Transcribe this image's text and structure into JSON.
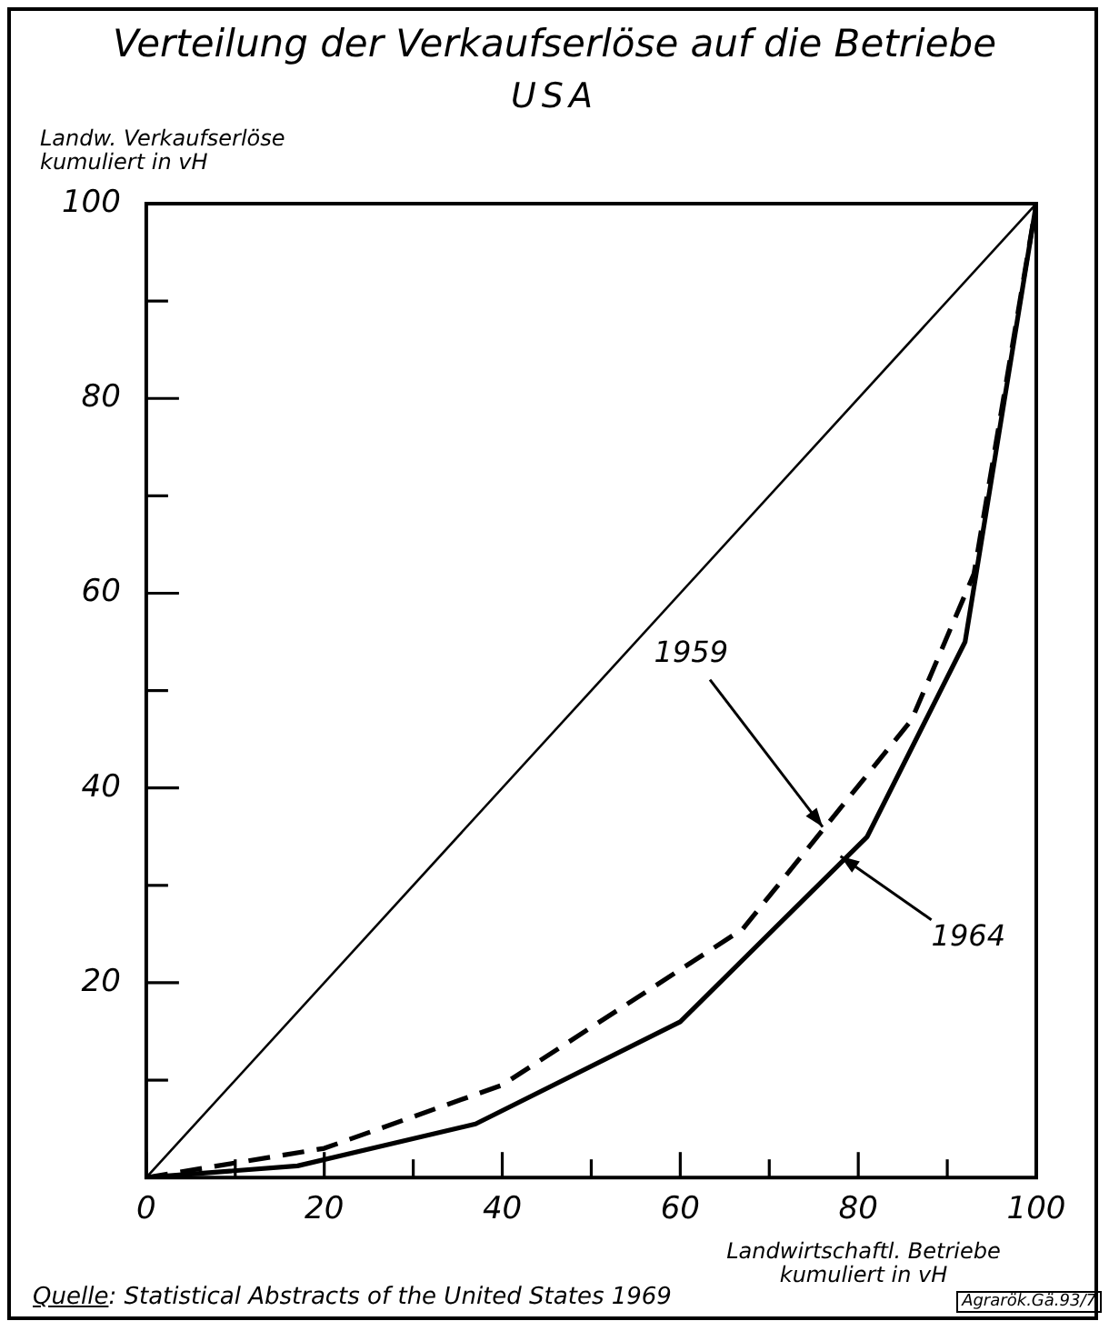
{
  "chart_data": {
    "type": "line",
    "title": "Verteilung der Verkaufserlöse auf die Betriebe",
    "subtitle": "USA",
    "ylabel": "Landw. Verkaufserlöse kumuliert in vH",
    "xlabel": "Landwirtschaftl. Betriebe kumuliert in vH",
    "x": [
      0,
      100
    ],
    "series": [
      {
        "color": "#000000",
        "values": [
          0,
          100
        ],
        "line_style": "solid"
      },
      {
        "color": "#000000",
        "x": [
          0,
          20,
          40,
          67,
          86,
          93,
          100
        ],
        "values": [
          0,
          3,
          9.5,
          25.5,
          47,
          62,
          100
        ],
        "line_style": "dashed"
      },
      {
        "color": "#000000",
        "x": [
          0,
          17,
          37,
          60,
          81,
          92,
          100
        ],
        "values": [
          0,
          1.2,
          5.5,
          16,
          35,
          55,
          100
        ],
        "line_style": "solid"
      }
    ],
    "xlim": [
      0,
      100
    ],
    "ylim": [
      0,
      100
    ],
    "xticks": [
      0,
      {
        "value": 10,
        "label": null
      },
      20,
      {
        "value": 30,
        "label": null
      },
      40,
      {
        "value": 50,
        "label": null
      },
      60,
      {
        "value": 70,
        "label": null
      },
      80,
      {
        "value": 90,
        "label": null
      },
      100
    ],
    "yticks": [
      {
        "value": 0,
        "label": null
      },
      {
        "value": 10,
        "label": null
      },
      20,
      {
        "value": 30,
        "label": null
      },
      40,
      {
        "value": 50,
        "label": null
      },
      60,
      {
        "value": 70,
        "label": null
      },
      80,
      {
        "value": 90,
        "label": null
      },
      100
    ],
    "grid": false,
    "legend": false,
    "marker": "none",
    "annotations": [
      {
        "text": "1959",
        "x": 76,
        "y": 36
      },
      {
        "text": "1964",
        "x": 78,
        "y": 33
      },
      "Quelle: Statistical Abstracts of the United States 1969",
      "Agrarök.Gä.93/7"
    ]
  }
}
